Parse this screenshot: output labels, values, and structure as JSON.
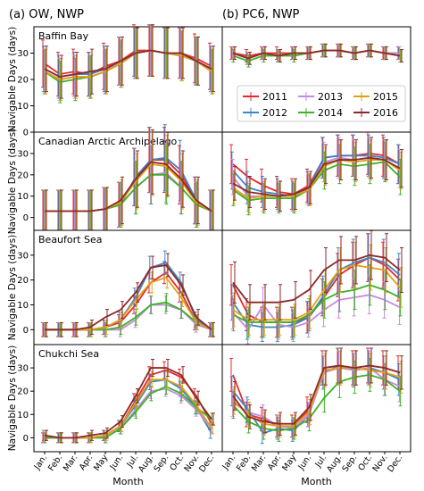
{
  "column_titles": [
    "(a) OW, NWP",
    "(b) PC6, NWP"
  ],
  "shared_ylabel": "Navigable Days (days)",
  "shared_xlabel": "Month",
  "legend": {
    "placement": "inside Baffin Bay, PC6 panel, right side",
    "columns": 3,
    "entries": [
      "2011",
      "2012",
      "2013",
      "2014",
      "2015",
      "2016"
    ]
  },
  "chart_data": [
    {
      "type": "line",
      "scenario": "OW, NWP",
      "region": "Baffin Bay",
      "x": [
        "Jan.",
        "Feb.",
        "Mar.",
        "Apr.",
        "May",
        "Jun.",
        "Jul.",
        "Aug.",
        "Sep.",
        "Oct.",
        "Nov.",
        "Dec."
      ],
      "ylim": [
        0,
        40
      ],
      "yticks": [
        0,
        10,
        20,
        30
      ],
      "grid": false,
      "series": [
        {
          "name": "2011",
          "color": "#e8292c",
          "values": [
            26,
            22,
            23,
            22,
            25,
            27,
            31,
            31,
            30,
            30,
            28,
            25
          ]
        },
        {
          "name": "2012",
          "color": "#3a86c8",
          "values": [
            24,
            21,
            22,
            22,
            24,
            27,
            30,
            31,
            30,
            30,
            27,
            24
          ]
        },
        {
          "name": "2013",
          "color": "#c48ae0",
          "values": [
            23,
            20,
            21,
            21,
            23,
            27,
            30,
            31,
            30,
            30,
            27,
            24
          ]
        },
        {
          "name": "2014",
          "color": "#3cb226",
          "values": [
            23,
            19,
            20,
            21,
            23,
            26,
            30,
            31,
            30,
            29,
            27,
            23
          ]
        },
        {
          "name": "2015",
          "color": "#e0a015",
          "values": [
            23,
            20,
            21,
            21,
            23,
            26,
            30,
            31,
            30,
            29,
            27,
            23
          ]
        },
        {
          "name": "2016",
          "color": "#8b2a2a",
          "values": [
            24,
            21,
            22,
            23,
            24,
            27,
            30,
            31,
            30,
            30,
            27,
            24
          ]
        }
      ]
    },
    {
      "type": "line",
      "scenario": "PC6, NWP",
      "region": "Baffin Bay",
      "x": [
        "Jan.",
        "Feb.",
        "Mar.",
        "Apr.",
        "May",
        "Jun.",
        "Jul.",
        "Aug.",
        "Sep.",
        "Oct.",
        "Nov.",
        "Dec."
      ],
      "ylim": [
        0,
        40
      ],
      "yticks": [
        0,
        10,
        20,
        30
      ],
      "grid": false,
      "series": [
        {
          "name": "2011",
          "color": "#e8292c",
          "values": [
            30,
            29,
            30,
            30,
            30,
            30,
            31,
            31,
            30,
            31,
            30,
            30
          ]
        },
        {
          "name": "2012",
          "color": "#3a86c8",
          "values": [
            30,
            28,
            30,
            29,
            30,
            30,
            31,
            31,
            30,
            31,
            30,
            30
          ]
        },
        {
          "name": "2013",
          "color": "#c48ae0",
          "values": [
            30,
            28,
            30,
            29,
            30,
            30,
            31,
            31,
            30,
            31,
            30,
            30
          ]
        },
        {
          "name": "2014",
          "color": "#3cb226",
          "values": [
            29,
            27,
            29,
            29,
            29,
            30,
            31,
            31,
            30,
            31,
            30,
            29
          ]
        },
        {
          "name": "2015",
          "color": "#e0a015",
          "values": [
            30,
            28,
            30,
            29,
            30,
            30,
            31,
            31,
            30,
            31,
            30,
            29
          ]
        },
        {
          "name": "2016",
          "color": "#8b2a2a",
          "values": [
            30,
            28,
            30,
            29,
            30,
            30,
            31,
            31,
            30,
            31,
            30,
            29
          ]
        }
      ]
    },
    {
      "type": "line",
      "scenario": "OW, NWP",
      "region": "Canadian Arctic Archipelago",
      "x": [
        "Jan.",
        "Feb.",
        "Mar.",
        "Apr.",
        "May",
        "Jun.",
        "Jul.",
        "Aug.",
        "Sep.",
        "Oct.",
        "Nov.",
        "Dec."
      ],
      "ylim": [
        -6,
        40
      ],
      "yticks": [
        0,
        10,
        20,
        30
      ],
      "grid": false,
      "series": [
        {
          "name": "2011",
          "color": "#e8292c",
          "values": [
            3,
            3,
            3,
            3,
            4,
            6,
            19,
            27,
            27,
            20,
            8,
            3
          ]
        },
        {
          "name": "2012",
          "color": "#3a86c8",
          "values": [
            3,
            3,
            3,
            3,
            4,
            6,
            19,
            27,
            28,
            22,
            8,
            3
          ]
        },
        {
          "name": "2013",
          "color": "#c48ae0",
          "values": [
            3,
            3,
            3,
            3,
            4,
            6,
            14,
            20,
            21,
            14,
            6,
            3
          ]
        },
        {
          "name": "2014",
          "color": "#3cb226",
          "values": [
            3,
            3,
            3,
            3,
            4,
            6,
            14,
            20,
            20,
            14,
            6,
            3
          ]
        },
        {
          "name": "2015",
          "color": "#e0a015",
          "values": [
            3,
            3,
            3,
            3,
            4,
            7,
            17,
            25,
            24,
            17,
            7,
            3
          ]
        },
        {
          "name": "2016",
          "color": "#8b2a2a",
          "values": [
            3,
            3,
            3,
            3,
            4,
            8,
            18,
            26,
            25,
            18,
            8,
            3
          ]
        }
      ]
    },
    {
      "type": "line",
      "scenario": "PC6, NWP",
      "region": "Canadian Arctic Archipelago",
      "x": [
        "Jan.",
        "Feb.",
        "Mar.",
        "Apr.",
        "May",
        "Jun.",
        "Jul.",
        "Aug.",
        "Sep.",
        "Oct.",
        "Nov.",
        "Dec."
      ],
      "ylim": [
        -6,
        40
      ],
      "yticks": [
        0,
        10,
        20,
        30
      ],
      "grid": false,
      "series": [
        {
          "name": "2011",
          "color": "#e8292c",
          "values": [
            25,
            19,
            15,
            12,
            11,
            15,
            28,
            29,
            29,
            30,
            29,
            25
          ]
        },
        {
          "name": "2012",
          "color": "#3a86c8",
          "values": [
            22,
            14,
            12,
            11,
            10,
            14,
            28,
            29,
            29,
            29,
            28,
            25
          ]
        },
        {
          "name": "2013",
          "color": "#c48ae0",
          "values": [
            19,
            10,
            10,
            10,
            10,
            13,
            26,
            28,
            27,
            28,
            27,
            23
          ]
        },
        {
          "name": "2014",
          "color": "#3cb226",
          "values": [
            13,
            8,
            9,
            9,
            9,
            13,
            22,
            25,
            24,
            25,
            26,
            19
          ]
        },
        {
          "name": "2015",
          "color": "#e0a015",
          "values": [
            14,
            9,
            10,
            10,
            10,
            13,
            24,
            27,
            26,
            27,
            27,
            22
          ]
        },
        {
          "name": "2016",
          "color": "#8b2a2a",
          "values": [
            16,
            12,
            11,
            10,
            11,
            14,
            25,
            27,
            27,
            28,
            27,
            23
          ]
        }
      ]
    },
    {
      "type": "line",
      "scenario": "OW, NWP",
      "region": "Beaufort Sea",
      "x": [
        "Jan.",
        "Feb.",
        "Mar.",
        "Apr.",
        "May",
        "Jun.",
        "Jul.",
        "Aug.",
        "Sep.",
        "Oct.",
        "Nov.",
        "Dec."
      ],
      "ylim": [
        -6,
        40
      ],
      "yticks": [
        0,
        10,
        20,
        30
      ],
      "grid": false,
      "series": [
        {
          "name": "2011",
          "color": "#e8292c",
          "values": [
            0,
            0,
            0,
            0,
            1,
            3,
            10,
            19,
            23,
            15,
            3,
            0
          ]
        },
        {
          "name": "2012",
          "color": "#3a86c8",
          "values": [
            0,
            0,
            0,
            0,
            1,
            4,
            13,
            25,
            27,
            19,
            4,
            0
          ]
        },
        {
          "name": "2013",
          "color": "#c48ae0",
          "values": [
            0,
            0,
            0,
            0,
            0,
            0,
            4,
            10,
            10,
            8,
            2,
            0
          ]
        },
        {
          "name": "2014",
          "color": "#3cb226",
          "values": [
            0,
            0,
            0,
            0,
            0,
            1,
            5,
            10,
            11,
            8,
            3,
            0
          ]
        },
        {
          "name": "2015",
          "color": "#e0a015",
          "values": [
            0,
            0,
            0,
            0,
            1,
            4,
            12,
            19,
            21,
            13,
            3,
            0
          ]
        },
        {
          "name": "2016",
          "color": "#8b2a2a",
          "values": [
            0,
            0,
            0,
            1,
            5,
            8,
            15,
            25,
            26,
            18,
            5,
            0
          ]
        }
      ]
    },
    {
      "type": "line",
      "scenario": "PC6, NWP",
      "region": "Beaufort Sea",
      "x": [
        "Jan.",
        "Feb.",
        "Mar.",
        "Apr.",
        "May",
        "Jun.",
        "Jul.",
        "Aug.",
        "Sep.",
        "Oct.",
        "Nov.",
        "Dec."
      ],
      "ylim": [
        -6,
        40
      ],
      "yticks": [
        0,
        10,
        20,
        30
      ],
      "grid": false,
      "series": [
        {
          "name": "2011",
          "color": "#e8292c",
          "values": [
            18,
            6,
            3,
            3,
            3,
            5,
            13,
            22,
            26,
            29,
            26,
            20
          ]
        },
        {
          "name": "2012",
          "color": "#3a86c8",
          "values": [
            11,
            2,
            1,
            1,
            2,
            5,
            14,
            24,
            27,
            29,
            27,
            22
          ]
        },
        {
          "name": "2013",
          "color": "#c48ae0",
          "values": [
            7,
            0,
            10,
            2,
            1,
            3,
            8,
            12,
            13,
            14,
            12,
            9
          ]
        },
        {
          "name": "2014",
          "color": "#3cb226",
          "values": [
            6,
            3,
            3,
            3,
            3,
            6,
            12,
            15,
            16,
            18,
            16,
            13
          ]
        },
        {
          "name": "2015",
          "color": "#e0a015",
          "values": [
            8,
            4,
            4,
            4,
            4,
            7,
            16,
            24,
            26,
            25,
            24,
            17
          ]
        },
        {
          "name": "2016",
          "color": "#8b2a2a",
          "values": [
            19,
            11,
            11,
            11,
            12,
            16,
            24,
            28,
            28,
            30,
            29,
            24
          ]
        }
      ]
    },
    {
      "type": "line",
      "scenario": "OW, NWP",
      "region": "Chukchi Sea",
      "x": [
        "Jan.",
        "Feb.",
        "Mar.",
        "Apr.",
        "May",
        "Jun.",
        "Jul.",
        "Aug.",
        "Sep.",
        "Oct.",
        "Nov.",
        "Dec."
      ],
      "ylim": [
        -6,
        40
      ],
      "yticks": [
        0,
        10,
        20,
        30
      ],
      "grid": false,
      "series": [
        {
          "name": "2011",
          "color": "#e8292c",
          "values": [
            0,
            0,
            0,
            0,
            1,
            5,
            16,
            27,
            29,
            26,
            18,
            6
          ]
        },
        {
          "name": "2012",
          "color": "#3a86c8",
          "values": [
            1,
            0,
            0,
            0,
            1,
            5,
            14,
            24,
            25,
            21,
            13,
            2
          ]
        },
        {
          "name": "2013",
          "color": "#c48ae0",
          "values": [
            0,
            0,
            0,
            0,
            0,
            4,
            12,
            20,
            21,
            18,
            12,
            4
          ]
        },
        {
          "name": "2014",
          "color": "#3cb226",
          "values": [
            0,
            0,
            0,
            0,
            0,
            4,
            11,
            19,
            22,
            19,
            13,
            8
          ]
        },
        {
          "name": "2015",
          "color": "#e0a015",
          "values": [
            1,
            0,
            0,
            0,
            1,
            5,
            15,
            25,
            25,
            22,
            14,
            4
          ]
        },
        {
          "name": "2016",
          "color": "#8b2a2a",
          "values": [
            1,
            0,
            0,
            1,
            2,
            7,
            18,
            30,
            30,
            27,
            17,
            8
          ]
        }
      ]
    },
    {
      "type": "line",
      "scenario": "PC6, NWP",
      "region": "Chukchi Sea",
      "x": [
        "Jan.",
        "Feb.",
        "Mar.",
        "Apr.",
        "May",
        "Jun.",
        "Jul.",
        "Aug.",
        "Sep.",
        "Oct.",
        "Nov.",
        "Dec."
      ],
      "ylim": [
        -6,
        40
      ],
      "yticks": [
        0,
        10,
        20,
        30
      ],
      "grid": false,
      "series": [
        {
          "name": "2011",
          "color": "#e8292c",
          "values": [
            27,
            10,
            8,
            5,
            5,
            12,
            30,
            31,
            30,
            31,
            30,
            28
          ]
        },
        {
          "name": "2012",
          "color": "#3a86c8",
          "values": [
            20,
            12,
            2,
            4,
            3,
            10,
            28,
            31,
            29,
            30,
            28,
            25
          ]
        },
        {
          "name": "2013",
          "color": "#c48ae0",
          "values": [
            15,
            11,
            9,
            5,
            4,
            10,
            28,
            30,
            29,
            30,
            25,
            22
          ]
        },
        {
          "name": "2014",
          "color": "#3cb226",
          "values": [
            14,
            7,
            4,
            3,
            4,
            8,
            17,
            24,
            26,
            27,
            25,
            20
          ]
        },
        {
          "name": "2015",
          "color": "#e0a015",
          "values": [
            16,
            10,
            6,
            5,
            5,
            11,
            29,
            30,
            30,
            29,
            28,
            26
          ]
        },
        {
          "name": "2016",
          "color": "#8b2a2a",
          "values": [
            18,
            9,
            7,
            6,
            6,
            13,
            30,
            31,
            30,
            31,
            30,
            28
          ]
        }
      ]
    }
  ]
}
